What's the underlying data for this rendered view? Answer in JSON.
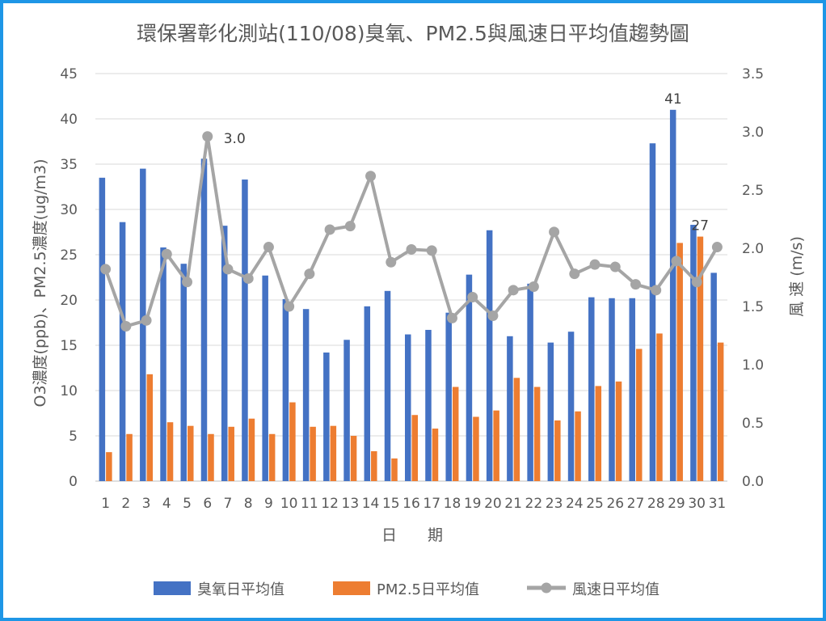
{
  "chart_data": {
    "type": "bar",
    "title": "環保署彰化測站(110/08)臭氧、PM2.5與風速日平均值趨勢圖",
    "xlabel": "日　　期",
    "ylabel_left": "O3濃度(ppb)、PM2.5濃度(ug/m3)",
    "ylabel_right": "風  速 (m/s)",
    "ylim_left": [
      0,
      45
    ],
    "ylim_right": [
      0,
      3.5
    ],
    "left_ticks": [
      0,
      5,
      10,
      15,
      20,
      25,
      30,
      35,
      40,
      45
    ],
    "right_ticks": [
      "0.0",
      "0.5",
      "1.0",
      "1.5",
      "2.0",
      "2.5",
      "3.0",
      "3.5"
    ],
    "grid": true,
    "legend_position": "bottom",
    "categories": [
      "1",
      "2",
      "3",
      "4",
      "5",
      "6",
      "7",
      "8",
      "9",
      "10",
      "11",
      "12",
      "13",
      "14",
      "15",
      "16",
      "17",
      "18",
      "19",
      "20",
      "21",
      "22",
      "23",
      "24",
      "25",
      "26",
      "27",
      "28",
      "29",
      "30",
      "31"
    ],
    "series": [
      {
        "name": "臭氧日平均值",
        "type": "bar",
        "axis": "left",
        "color": "#4472c4",
        "values": [
          33.5,
          28.6,
          34.5,
          25.8,
          24.0,
          35.6,
          28.2,
          33.3,
          22.7,
          20.1,
          19.0,
          14.2,
          15.6,
          19.3,
          21.0,
          16.2,
          16.7,
          18.6,
          22.8,
          27.7,
          16.0,
          21.8,
          15.3,
          16.5,
          20.3,
          20.2,
          20.2,
          37.3,
          41.0,
          28.3,
          23.0
        ]
      },
      {
        "name": "PM2.5日平均值",
        "type": "bar",
        "axis": "left",
        "color": "#ed7d31",
        "values": [
          3.2,
          5.2,
          11.8,
          6.5,
          6.1,
          5.2,
          6.0,
          6.9,
          5.2,
          8.7,
          6.0,
          6.1,
          5.0,
          3.3,
          2.5,
          7.3,
          5.8,
          10.4,
          7.1,
          7.8,
          11.4,
          10.4,
          6.7,
          7.7,
          10.5,
          11.0,
          14.6,
          16.3,
          26.3,
          27.0,
          15.3
        ]
      },
      {
        "name": "風速日平均值",
        "type": "line",
        "axis": "right",
        "color": "#a5a5a5",
        "values": [
          1.82,
          1.33,
          1.38,
          1.95,
          1.71,
          2.96,
          1.82,
          1.74,
          2.01,
          1.5,
          1.78,
          2.16,
          2.19,
          2.62,
          1.88,
          1.99,
          1.98,
          1.4,
          1.58,
          1.42,
          1.64,
          1.67,
          2.14,
          1.78,
          1.86,
          1.84,
          1.69,
          1.64,
          1.89,
          1.71,
          2.01
        ]
      }
    ],
    "annotations": [
      {
        "text": "3.0",
        "series": 2,
        "index": 5
      },
      {
        "text": "41",
        "series": 0,
        "index": 28
      },
      {
        "text": "27",
        "series": 1,
        "index": 29
      }
    ]
  }
}
